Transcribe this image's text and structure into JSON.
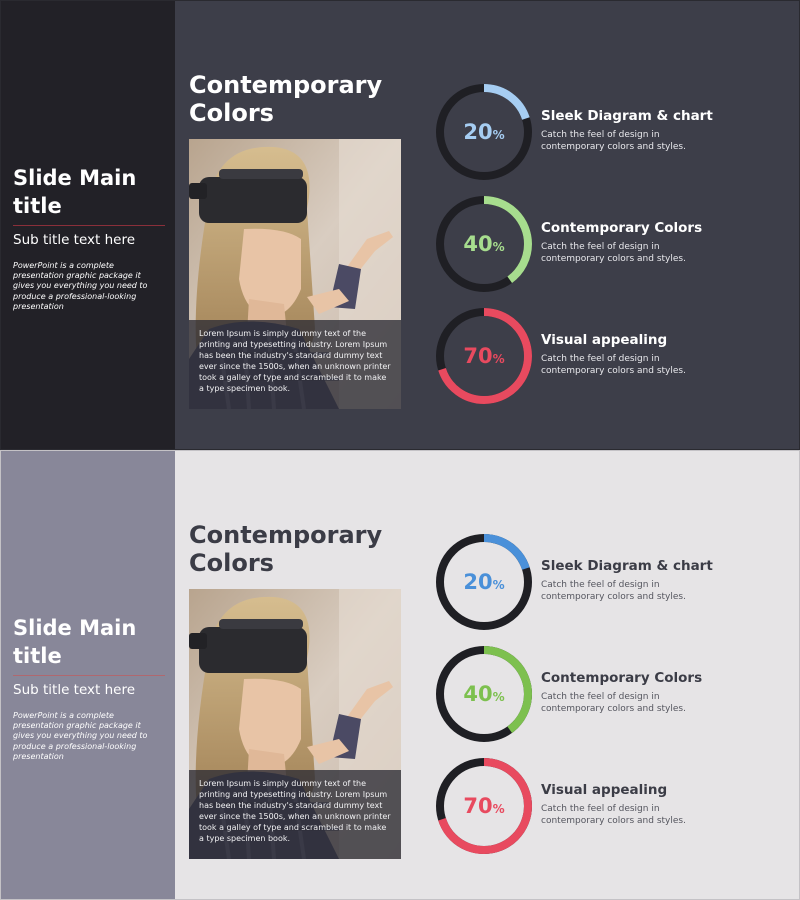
{
  "slides": [
    {
      "theme": "dark",
      "sidebar": {
        "title": "Slide Main title",
        "subtitle": "Sub title text here",
        "description": "PowerPoint is a complete presentation graphic package it gives you everything you need to produce a professional-looking presentation"
      },
      "main": {
        "title": "Contemporary Colors",
        "photo_caption": "Lorem Ipsum is simply dummy text of the printing and typesetting industry. Lorem Ipsum has been the industry's standard dummy text ever since the 1500s, when an unknown printer took a galley of type and scrambled it to make a type specimen book.",
        "items": [
          {
            "percent": 20,
            "percent_text": "20",
            "sign": "%",
            "color": "#a6cdf2",
            "title": "Sleek Diagram & chart",
            "desc": "Catch the feel of design in contemporary colors and styles."
          },
          {
            "percent": 40,
            "percent_text": "40",
            "sign": "%",
            "color": "#a7dd8e",
            "title": "Contemporary Colors",
            "desc": "Catch the feel of design in contemporary colors and styles."
          },
          {
            "percent": 70,
            "percent_text": "70",
            "sign": "%",
            "color": "#e84a5f",
            "title": "Visual appealing",
            "desc": "Catch the feel of design in contemporary colors and styles."
          }
        ]
      }
    },
    {
      "theme": "light",
      "sidebar": {
        "title": "Slide Main title",
        "subtitle": "Sub title text here",
        "description": "PowerPoint is a complete presentation graphic package it gives you everything you need to produce a professional-looking presentation"
      },
      "main": {
        "title": "Contemporary Colors",
        "photo_caption": "Lorem Ipsum is simply dummy text of the printing and typesetting industry. Lorem Ipsum has been the industry's standard dummy text ever since the 1500s, when an unknown printer took a galley of type and scrambled it to make a type specimen book.",
        "items": [
          {
            "percent": 20,
            "percent_text": "20",
            "sign": "%",
            "color": "#4a90d9",
            "title": "Sleek Diagram & chart",
            "desc": "Catch the feel of design in contemporary colors and styles."
          },
          {
            "percent": 40,
            "percent_text": "40",
            "sign": "%",
            "color": "#7dc04f",
            "title": "Contemporary Colors",
            "desc": "Catch the feel of design in contemporary colors and styles."
          },
          {
            "percent": 70,
            "percent_text": "70",
            "sign": "%",
            "color": "#e84a5f",
            "title": "Visual appealing",
            "desc": "Catch the feel of design in contemporary colors and styles."
          }
        ]
      }
    }
  ]
}
